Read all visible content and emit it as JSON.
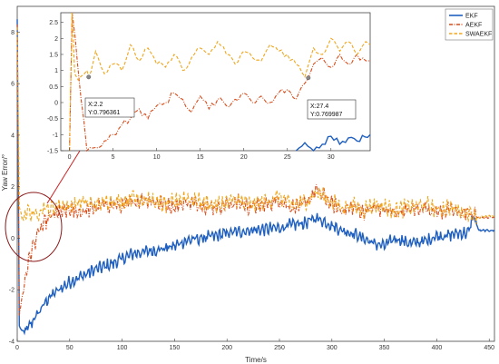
{
  "chart_data": {
    "type": "line",
    "xlabel": "Time/s",
    "ylabel": "Yaw Error/°",
    "xlim": [
      0,
      455
    ],
    "ylim": [
      -4,
      9
    ],
    "xticks": [
      0,
      50,
      100,
      150,
      200,
      250,
      300,
      350,
      400,
      450
    ],
    "yticks": [
      -4,
      -2,
      0,
      2,
      4,
      6,
      8
    ],
    "grid": false,
    "legend_position": "top-right",
    "series": [
      {
        "name": "EKF",
        "color": "#1f5fbf",
        "style": "solid",
        "x": [
          0,
          2,
          5,
          10,
          15,
          20,
          25,
          30,
          40,
          50,
          60,
          75,
          90,
          100,
          110,
          125,
          140,
          150,
          160,
          175,
          190,
          200,
          210,
          220,
          235,
          250,
          260,
          275,
          285,
          300,
          310,
          320,
          330,
          340,
          350,
          360,
          375,
          390,
          400,
          410,
          420,
          430,
          435,
          440,
          450,
          455
        ],
        "y": [
          8.5,
          -3.4,
          -3.7,
          -3.5,
          -3.2,
          -2.9,
          -2.6,
          -2.3,
          -2.0,
          -1.7,
          -1.5,
          -1.2,
          -1.0,
          -0.8,
          -0.6,
          -0.5,
          -0.4,
          -0.3,
          -0.1,
          0.0,
          0.1,
          0.2,
          0.25,
          0.3,
          0.35,
          0.4,
          0.5,
          0.6,
          0.8,
          0.5,
          0.3,
          0.2,
          0.0,
          -0.2,
          -0.3,
          0.0,
          -0.2,
          -0.1,
          0.1,
          0.1,
          0.2,
          0.2,
          0.9,
          0.3,
          0.3,
          0.3
        ]
      },
      {
        "name": "AEKF",
        "color": "#d94c1a",
        "style": "dash-dot",
        "x": [
          0,
          2,
          5,
          10,
          15,
          20,
          25,
          30,
          40,
          50,
          60,
          75,
          90,
          100,
          110,
          125,
          140,
          150,
          160,
          175,
          190,
          200,
          210,
          220,
          235,
          250,
          260,
          275,
          285,
          300,
          310,
          320,
          330,
          340,
          350,
          360,
          375,
          390,
          400,
          410,
          420,
          430,
          435,
          440,
          450,
          455
        ],
        "y": [
          8.3,
          -3.0,
          -2.2,
          -1.0,
          -0.3,
          0.2,
          0.5,
          0.8,
          1.0,
          1.1,
          1.0,
          1.2,
          1.3,
          1.2,
          1.4,
          1.5,
          1.3,
          1.2,
          1.4,
          1.3,
          1.2,
          1.3,
          1.4,
          1.2,
          1.3,
          1.5,
          1.2,
          1.3,
          1.9,
          1.3,
          1.1,
          1.2,
          1.0,
          1.2,
          1.1,
          1.0,
          1.1,
          1.2,
          1.0,
          1.1,
          1.0,
          1.0,
          0.9,
          0.8,
          0.8,
          0.8
        ]
      },
      {
        "name": "SWAEKF",
        "color": "#f0a61c",
        "style": "dashed",
        "x": [
          0,
          2,
          5,
          10,
          15,
          20,
          25,
          30,
          40,
          50,
          60,
          75,
          90,
          100,
          110,
          125,
          140,
          150,
          160,
          175,
          190,
          200,
          210,
          220,
          235,
          250,
          260,
          275,
          285,
          300,
          310,
          320,
          330,
          340,
          350,
          360,
          375,
          390,
          400,
          410,
          420,
          430,
          435,
          440,
          450,
          455
        ],
        "y": [
          8.2,
          1.2,
          0.8,
          1.1,
          0.9,
          1.0,
          1.2,
          1.1,
          1.3,
          1.2,
          1.4,
          1.3,
          1.5,
          1.4,
          1.6,
          1.5,
          1.3,
          1.4,
          1.6,
          1.4,
          1.3,
          1.4,
          1.5,
          1.3,
          1.4,
          1.6,
          1.3,
          1.4,
          1.8,
          1.4,
          1.2,
          1.3,
          1.1,
          1.3,
          1.2,
          1.1,
          1.2,
          1.3,
          1.1,
          1.2,
          1.1,
          1.0,
          0.9,
          0.8,
          0.85,
          0.85
        ]
      }
    ],
    "inset": {
      "xlim": [
        -1,
        34.5
      ],
      "ylim": [
        -1.5,
        2.8
      ],
      "xticks": [
        0,
        5,
        10,
        15,
        20,
        25,
        30
      ],
      "yticks": [
        -1.5,
        -1,
        -0.5,
        0,
        0.5,
        1,
        1.5,
        2,
        2.5
      ],
      "series": [
        {
          "name": "EKF",
          "x": [
            26,
            27,
            28,
            29,
            30,
            31,
            32,
            33,
            34.5
          ],
          "y": [
            -1.5,
            -1.25,
            -1.5,
            -1.3,
            -1.05,
            -1.3,
            -1.1,
            -1.2,
            -1.0
          ]
        },
        {
          "name": "AEKF",
          "x": [
            0,
            0.3,
            2,
            3,
            4,
            5,
            6,
            7,
            8,
            9,
            10,
            11,
            12,
            13,
            14,
            15,
            16,
            17,
            18,
            19,
            20,
            21,
            22,
            23,
            24,
            25,
            26,
            27,
            27.4,
            28,
            29,
            30,
            31,
            32,
            33,
            34,
            34.5
          ],
          "y": [
            -1.5,
            2.8,
            -1.5,
            -1.4,
            -1.2,
            -1.0,
            -0.7,
            -0.5,
            -0.2,
            -0.5,
            -0.1,
            0.0,
            0.3,
            0.1,
            -0.3,
            0.2,
            -0.2,
            0.1,
            -0.1,
            0.1,
            0.3,
            0.0,
            0.2,
            0.0,
            0.3,
            0.4,
            0.1,
            0.6,
            0.77,
            1.2,
            1.4,
            1.1,
            1.5,
            1.2,
            1.5,
            1.3,
            1.3
          ]
        },
        {
          "name": "SWAEKF",
          "x": [
            0,
            0.3,
            0.6,
            1,
            2,
            2.2,
            3,
            4,
            5,
            6,
            7,
            8,
            9,
            10,
            11,
            12,
            13,
            14,
            15,
            16,
            17,
            18,
            19,
            20,
            21,
            22,
            23,
            24,
            25,
            26,
            27,
            28,
            29,
            30,
            31,
            32,
            33,
            34,
            34.5
          ],
          "y": [
            -1.5,
            2.8,
            0.9,
            0.7,
            1.0,
            0.8,
            1.6,
            0.9,
            1.2,
            1.0,
            1.8,
            1.3,
            1.7,
            1.2,
            1.1,
            1.5,
            1.0,
            1.4,
            1.7,
            1.5,
            1.9,
            1.5,
            1.2,
            1.6,
            1.4,
            1.3,
            1.8,
            1.6,
            1.5,
            1.2,
            0.8,
            1.7,
            1.5,
            2.0,
            1.6,
            1.9,
            1.5,
            1.9,
            1.8
          ]
        }
      ]
    },
    "annotations": [
      {
        "label_x": "X:2.2",
        "label_y": "Y:0.796361",
        "x": 2.2,
        "y": 0.796361
      },
      {
        "label_x": "X:27.4",
        "label_y": "Y:0.769987",
        "x": 27.4,
        "y": 0.769987
      }
    ]
  }
}
